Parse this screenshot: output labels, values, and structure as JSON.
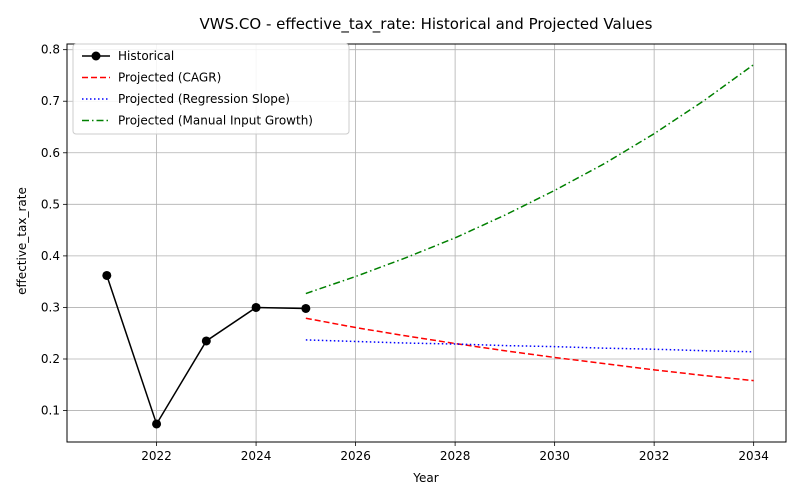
{
  "chart_data": {
    "type": "line",
    "title": "VWS.CO - effective_tax_rate: Historical and Projected Values",
    "xlabel": "Year",
    "ylabel": "effective_tax_rate",
    "xlim": [
      2020.2,
      2034.65
    ],
    "ylim": [
      0.039,
      0.811
    ],
    "x_ticks": [
      2022,
      2024,
      2026,
      2028,
      2030,
      2032,
      2034
    ],
    "y_ticks": [
      0.1,
      0.2,
      0.3,
      0.4,
      0.5,
      0.6,
      0.7,
      0.8
    ],
    "x_tick_labels": [
      "2022",
      "2024",
      "2026",
      "2028",
      "2030",
      "2032",
      "2034"
    ],
    "y_tick_labels": [
      "0.1",
      "0.2",
      "0.3",
      "0.4",
      "0.5",
      "0.6",
      "0.7",
      "0.8"
    ],
    "grid": true,
    "legend_position": "upper-left",
    "series": [
      {
        "name": "Historical",
        "color": "#000000",
        "style": "solid-marker",
        "x": [
          2021,
          2022,
          2023,
          2024,
          2025
        ],
        "y": [
          0.362,
          0.074,
          0.235,
          0.3,
          0.298
        ]
      },
      {
        "name": "Projected (CAGR)",
        "color": "#ff0000",
        "style": "dashed",
        "x": [
          2025,
          2026,
          2027,
          2028,
          2029,
          2030,
          2031,
          2032,
          2033,
          2034
        ],
        "y": [
          0.279,
          0.261,
          0.245,
          0.23,
          0.216,
          0.203,
          0.191,
          0.179,
          0.168,
          0.158
        ]
      },
      {
        "name": "Projected (Regression Slope)",
        "color": "#0000ff",
        "style": "dotted",
        "x": [
          2025,
          2026,
          2027,
          2028,
          2029,
          2030,
          2031,
          2032,
          2033,
          2034
        ],
        "y": [
          0.237,
          0.234,
          0.231,
          0.229,
          0.226,
          0.224,
          0.221,
          0.219,
          0.216,
          0.214
        ]
      },
      {
        "name": "Projected (Manual Input Growth)",
        "color": "#008000",
        "style": "dashdot",
        "x": [
          2025,
          2026,
          2027,
          2028,
          2029,
          2030,
          2031,
          2032,
          2033,
          2034
        ],
        "y": [
          0.327,
          0.36,
          0.396,
          0.435,
          0.479,
          0.527,
          0.579,
          0.637,
          0.701,
          0.771
        ]
      }
    ]
  }
}
